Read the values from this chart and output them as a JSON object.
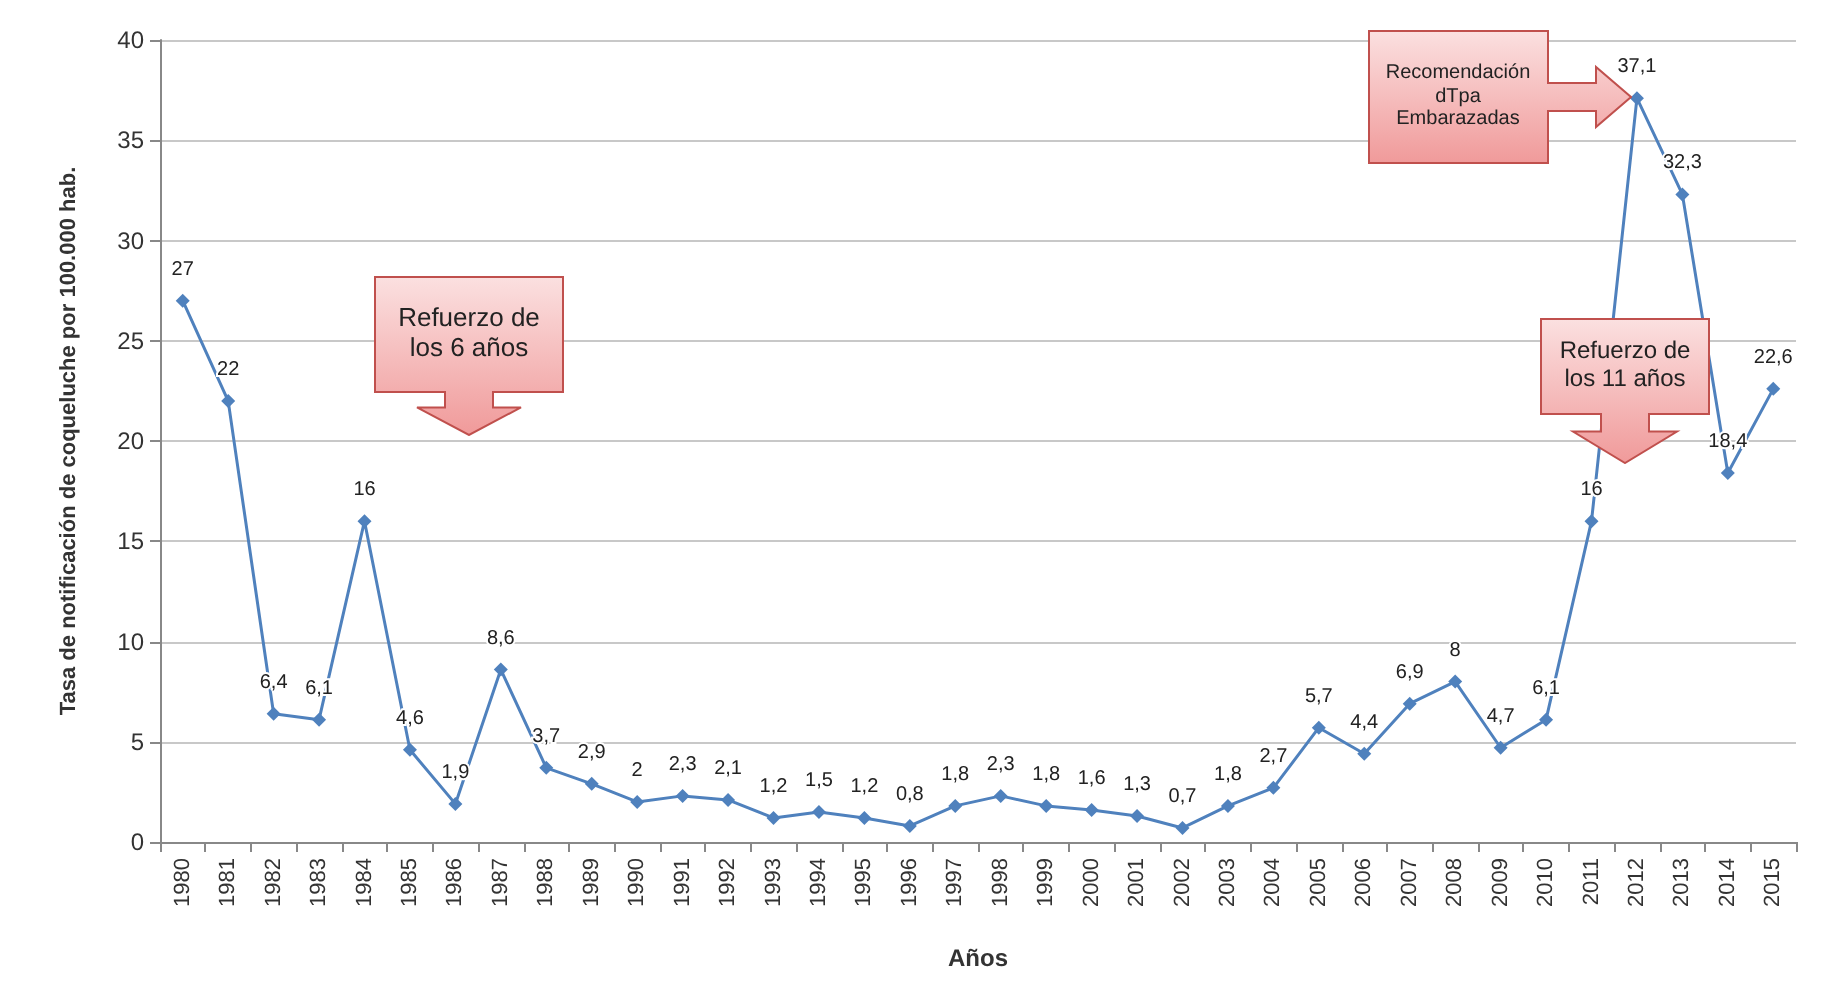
{
  "chart_data": {
    "type": "line",
    "xlabel": "Años",
    "ylabel": "Tasa de notificación de coqueluche por 100.000 hab.",
    "categories": [
      "1980",
      "1981",
      "1982",
      "1983",
      "1984",
      "1985",
      "1986",
      "1987",
      "1988",
      "1989",
      "1990",
      "1991",
      "1992",
      "1993",
      "1994",
      "1995",
      "1996",
      "1997",
      "1998",
      "1999",
      "2000",
      "2001",
      "2002",
      "2003",
      "2004",
      "2005",
      "2006",
      "2007",
      "2008",
      "2009",
      "2010",
      "2011",
      "2012",
      "2013",
      "2014",
      "2015"
    ],
    "values": [
      27,
      22,
      6.4,
      6.1,
      16,
      4.6,
      1.9,
      8.6,
      3.7,
      2.9,
      2,
      2.3,
      2.1,
      1.2,
      1.5,
      1.2,
      0.8,
      1.8,
      2.3,
      1.8,
      1.6,
      1.3,
      0.7,
      1.8,
      2.7,
      5.7,
      4.4,
      6.9,
      8,
      4.7,
      6.1,
      16,
      37.1,
      32.3,
      18.4,
      22.6
    ],
    "value_labels": [
      "27",
      "22",
      "6,4",
      "6,1",
      "16",
      "4,6",
      "1,9",
      "8,6",
      "3,7",
      "2,9",
      "2",
      "2,3",
      "2,1",
      "1,2",
      "1,5",
      "1,2",
      "0,8",
      "1,8",
      "2,3",
      "1,8",
      "1,6",
      "1,3",
      "0,7",
      "1,8",
      "2,7",
      "5,7",
      "4,4",
      "6,9",
      "8",
      "4,7",
      "6,1",
      "16",
      "37,1",
      "32,3",
      "18,4",
      "22,6"
    ],
    "color": "#4f81bd",
    "marker": "diamond",
    "line_style": "solid",
    "grid": true,
    "ylim": [
      0,
      40
    ],
    "yticks": [
      0,
      5,
      10,
      15,
      20,
      25,
      30,
      35,
      40
    ],
    "annotations": [
      "Refuerzo de\nlos 6 años",
      "Refuerzo de\nlos 11 años",
      "Recomendación\ndTpa\nEmbarazadas"
    ]
  }
}
